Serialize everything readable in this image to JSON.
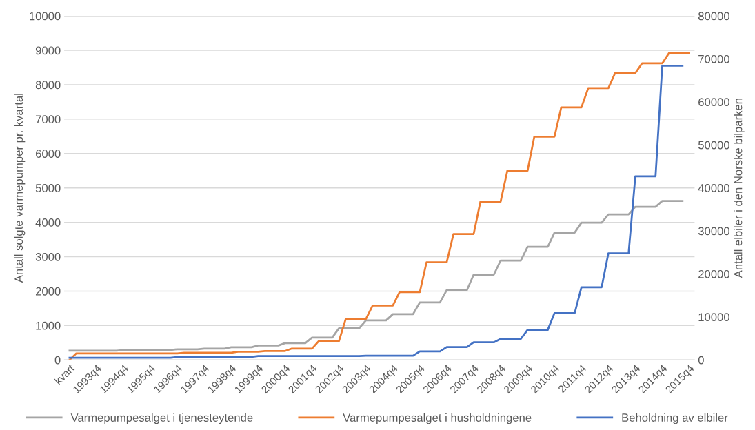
{
  "chart_data": {
    "type": "line",
    "ylabel": "Antall solgte varmepumper pr. kvartal",
    "y2label": "Antall elbiler i den Norske bilparken",
    "categories": [
      "kvart",
      null,
      null,
      null,
      "1993q4",
      null,
      null,
      null,
      "1994q4",
      null,
      null,
      null,
      "1995q4",
      null,
      null,
      null,
      "1996q4",
      null,
      null,
      null,
      "1997q4",
      null,
      null,
      null,
      "1998q4",
      null,
      null,
      null,
      "1999q4",
      null,
      null,
      null,
      "2000q4",
      null,
      null,
      null,
      "2001q4",
      null,
      null,
      null,
      "2002q4",
      null,
      null,
      null,
      "2003q4",
      null,
      null,
      null,
      "2004q4",
      null,
      null,
      null,
      "2005q4",
      null,
      null,
      null,
      "2006q4",
      null,
      null,
      null,
      "2007q4",
      null,
      null,
      null,
      "2008q4",
      null,
      null,
      null,
      "2009q4",
      null,
      null,
      null,
      "2010q4",
      null,
      null,
      null,
      "2011q4",
      null,
      null,
      null,
      "2012q4",
      null,
      null,
      null,
      "2013q4",
      null,
      null,
      null,
      "2014q4",
      null,
      null,
      null,
      "2015q4"
    ],
    "series": [
      {
        "name": "Varmepumpesalget i tjenesteytende",
        "color": "#a5a5a5",
        "values": [
          270,
          270,
          270,
          270,
          270,
          270,
          270,
          270,
          290,
          290,
          290,
          290,
          290,
          290,
          290,
          290,
          310,
          310,
          310,
          310,
          330,
          330,
          330,
          330,
          370,
          370,
          370,
          370,
          420,
          420,
          420,
          420,
          490,
          490,
          490,
          490,
          650,
          650,
          650,
          650,
          920,
          920,
          920,
          920,
          1150,
          1150,
          1150,
          1150,
          1330,
          1330,
          1330,
          1330,
          1670,
          1670,
          1670,
          1670,
          2030,
          2030,
          2030,
          2030,
          2480,
          2480,
          2480,
          2480,
          2890,
          2890,
          2890,
          2890,
          3290,
          3290,
          3290,
          3290,
          3700,
          3700,
          3700,
          3700,
          3990,
          3990,
          3990,
          3990,
          4230,
          4230,
          4230,
          4230,
          4450,
          4450,
          4450,
          4450,
          4620,
          4620,
          4620,
          4620,
          null
        ]
      },
      {
        "name": "Varmepumpesalget i husholdningene",
        "color": "#ed7d31",
        "values": [
          0,
          190,
          190,
          190,
          190,
          190,
          190,
          190,
          190,
          190,
          190,
          190,
          190,
          190,
          190,
          190,
          190,
          210,
          210,
          210,
          210,
          210,
          210,
          210,
          210,
          240,
          240,
          240,
          240,
          260,
          260,
          260,
          260,
          330,
          330,
          330,
          330,
          550,
          550,
          550,
          550,
          1190,
          1190,
          1190,
          1190,
          1580,
          1580,
          1580,
          1580,
          1970,
          1970,
          1970,
          1970,
          2840,
          2840,
          2840,
          2840,
          3660,
          3660,
          3660,
          3660,
          4600,
          4600,
          4600,
          4600,
          5500,
          5500,
          5500,
          5500,
          6490,
          6490,
          6490,
          6490,
          7340,
          7340,
          7340,
          7340,
          7900,
          7900,
          7900,
          7900,
          8340,
          8340,
          8340,
          8340,
          8620,
          8620,
          8620,
          8620,
          8920,
          8920,
          8920,
          8920
        ]
      },
      {
        "name": "Beholdning av elbiler",
        "color": "#4472c4",
        "axis": "y2",
        "values": [
          500,
          500,
          500,
          500,
          500,
          500,
          500,
          500,
          500,
          500,
          500,
          500,
          500,
          500,
          500,
          500,
          700,
          700,
          700,
          700,
          700,
          700,
          700,
          700,
          700,
          700,
          700,
          700,
          900,
          900,
          900,
          900,
          900,
          900,
          900,
          900,
          900,
          900,
          900,
          900,
          900,
          900,
          900,
          900,
          1000,
          1000,
          1000,
          1000,
          1000,
          1000,
          1000,
          1000,
          2000,
          2000,
          2000,
          2000,
          3000,
          3000,
          3000,
          3000,
          4100,
          4100,
          4100,
          4100,
          4900,
          4900,
          4900,
          4900,
          7000,
          7000,
          7000,
          7000,
          10900,
          10900,
          10900,
          10900,
          16900,
          16900,
          16900,
          16900,
          24800,
          24800,
          24800,
          24800,
          42700,
          42700,
          42700,
          42700,
          68400,
          68400,
          68400,
          68400,
          null
        ]
      }
    ],
    "ylim": [
      0,
      10000
    ],
    "yticks": [
      0,
      1000,
      2000,
      3000,
      4000,
      5000,
      6000,
      7000,
      8000,
      9000,
      10000
    ],
    "y2lim": [
      0,
      80000
    ],
    "y2ticks": [
      0,
      10000,
      20000,
      30000,
      40000,
      50000,
      60000,
      70000,
      80000
    ],
    "grid": "y",
    "legend": "bottom"
  }
}
